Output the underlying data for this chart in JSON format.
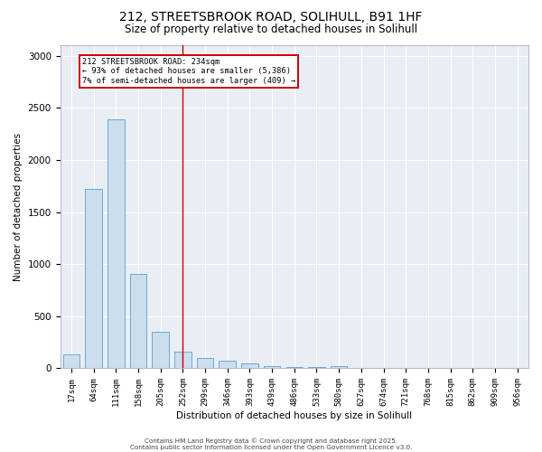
{
  "title1": "212, STREETSBROOK ROAD, SOLIHULL, B91 1HF",
  "title2": "Size of property relative to detached houses in Solihull",
  "xlabel": "Distribution of detached houses by size in Solihull",
  "ylabel": "Number of detached properties",
  "categories": [
    "17sqm",
    "64sqm",
    "111sqm",
    "158sqm",
    "205sqm",
    "252sqm",
    "299sqm",
    "346sqm",
    "393sqm",
    "439sqm",
    "486sqm",
    "533sqm",
    "580sqm",
    "627sqm",
    "674sqm",
    "721sqm",
    "768sqm",
    "815sqm",
    "862sqm",
    "909sqm",
    "956sqm"
  ],
  "values": [
    130,
    1720,
    2390,
    910,
    350,
    160,
    100,
    70,
    50,
    25,
    15,
    10,
    25,
    5,
    3,
    2,
    1,
    1,
    0,
    0,
    0
  ],
  "bar_color": "#ccdded",
  "bar_edge_color": "#6aaad4",
  "highlight_line_color": "#cc0000",
  "annotation_text": "212 STREETSBROOK ROAD: 234sqm\n← 93% of detached houses are smaller (5,386)\n7% of semi-detached houses are larger (409) →",
  "annotation_box_color": "#cc0000",
  "ylim": [
    0,
    3100
  ],
  "yticks": [
    0,
    500,
    1000,
    1500,
    2000,
    2500,
    3000
  ],
  "grid_color": "#ffffff",
  "background_color": "#e8eef4",
  "footer1": "Contains HM Land Registry data © Crown copyright and database right 2025.",
  "footer2": "Contains public sector information licensed under the Open Government Licence v3.0.",
  "title_fontsize": 10,
  "subtitle_fontsize": 8.5,
  "label_fontsize": 7.5,
  "tick_fontsize": 6.5,
  "footer_fontsize": 5.2
}
